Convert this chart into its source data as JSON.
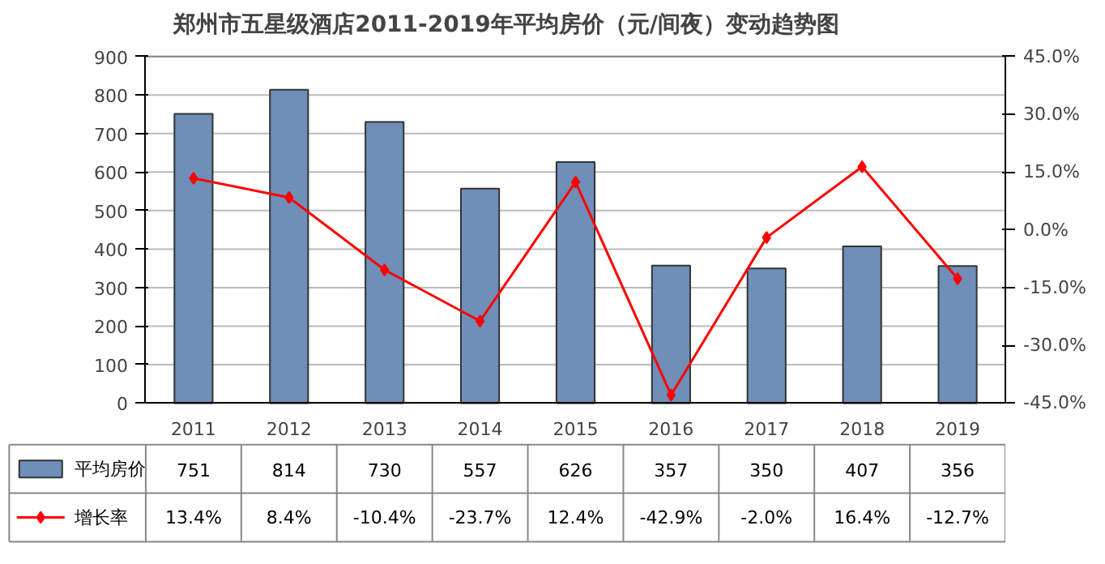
{
  "chart_data": {
    "type": "bar",
    "title": "郑州市五星级酒店2011-2019年平均房价（元/间夜）变动趋势图",
    "categories": [
      "2011",
      "2012",
      "2013",
      "2014",
      "2015",
      "2016",
      "2017",
      "2018",
      "2019"
    ],
    "series": [
      {
        "name": "平均房价",
        "color": "#6f8fb8",
        "values": [
          751,
          814,
          730,
          557,
          626,
          357,
          350,
          407,
          356
        ],
        "value_labels": [
          "751",
          "814",
          "730",
          "557",
          "626",
          "357",
          "350",
          "407",
          "356"
        ]
      },
      {
        "name": "增长率",
        "type": "line",
        "axis": "y2",
        "color": "#ff0000",
        "marker": "diamond",
        "values": [
          13.4,
          8.4,
          -10.4,
          -23.7,
          12.4,
          -42.9,
          -2.0,
          16.4,
          -12.7
        ],
        "value_labels": [
          "13.4%",
          "8.4%",
          "-10.4%",
          "-23.7%",
          "12.4%",
          "-42.9%",
          "-2.0%",
          "16.4%",
          "-12.7%"
        ]
      }
    ],
    "ylim": [
      0,
      900
    ],
    "yticks": [
      0,
      100,
      200,
      300,
      400,
      500,
      600,
      700,
      800,
      900
    ],
    "y2lim": [
      -45,
      45
    ],
    "y2ticks": [
      {
        "value": -45,
        "label": "-45.0%"
      },
      {
        "value": -30,
        "label": "-30.0%"
      },
      {
        "value": -15,
        "label": "-15.0%"
      },
      {
        "value": 0,
        "label": "0.0%"
      },
      {
        "value": 15,
        "label": "15.0%"
      },
      {
        "value": 30,
        "label": "30.0%"
      },
      {
        "value": 45,
        "label": "45.0%"
      }
    ],
    "grid": "y",
    "legend": "bottom"
  }
}
